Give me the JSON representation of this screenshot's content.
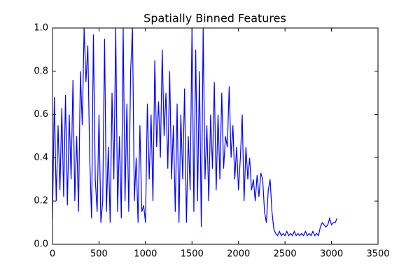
{
  "chart_data": {
    "type": "line",
    "title": "Spatially Binned Features",
    "x": [
      0,
      20,
      40,
      60,
      80,
      100,
      120,
      140,
      160,
      180,
      200,
      220,
      240,
      260,
      280,
      300,
      320,
      340,
      360,
      380,
      400,
      420,
      440,
      460,
      480,
      500,
      520,
      540,
      560,
      580,
      600,
      620,
      640,
      660,
      680,
      700,
      720,
      740,
      760,
      780,
      800,
      820,
      840,
      860,
      880,
      900,
      920,
      940,
      960,
      980,
      1000,
      1020,
      1040,
      1060,
      1080,
      1100,
      1120,
      1140,
      1160,
      1180,
      1200,
      1220,
      1240,
      1260,
      1280,
      1300,
      1320,
      1340,
      1360,
      1380,
      1400,
      1420,
      1440,
      1460,
      1480,
      1500,
      1520,
      1540,
      1560,
      1580,
      1600,
      1620,
      1640,
      1660,
      1680,
      1700,
      1720,
      1740,
      1760,
      1780,
      1800,
      1820,
      1840,
      1860,
      1880,
      1900,
      1920,
      1940,
      1960,
      1980,
      2000,
      2020,
      2040,
      2060,
      2080,
      2100,
      2120,
      2140,
      2160,
      2180,
      2200,
      2220,
      2240,
      2260,
      2280,
      2300,
      2320,
      2340,
      2360,
      2380,
      2400,
      2420,
      2440,
      2460,
      2480,
      2500,
      2520,
      2540,
      2560,
      2580,
      2600,
      2620,
      2640,
      2660,
      2680,
      2700,
      2720,
      2740,
      2760,
      2780,
      2800,
      2820,
      2840,
      2860,
      2880,
      2900,
      2920,
      2940,
      2960,
      2980,
      3000,
      3020,
      3040,
      3060
    ],
    "values": [
      0.12,
      0.68,
      0.2,
      0.55,
      0.25,
      0.63,
      0.22,
      0.69,
      0.18,
      0.6,
      0.3,
      0.76,
      0.2,
      0.5,
      0.15,
      0.8,
      0.55,
      1.0,
      0.75,
      0.92,
      0.4,
      0.12,
      0.97,
      0.3,
      0.15,
      0.6,
      0.1,
      0.2,
      0.95,
      0.15,
      0.45,
      0.1,
      0.7,
      0.3,
      1.0,
      0.15,
      0.5,
      0.12,
      1.0,
      0.2,
      0.65,
      0.15,
      0.8,
      1.0,
      0.2,
      0.4,
      0.1,
      0.55,
      0.15,
      0.18,
      0.1,
      0.65,
      0.3,
      0.6,
      0.2,
      0.85,
      0.45,
      0.66,
      0.4,
      0.9,
      0.5,
      0.7,
      0.35,
      0.8,
      0.3,
      0.55,
      0.15,
      0.65,
      0.1,
      0.6,
      0.3,
      0.72,
      0.1,
      0.5,
      0.25,
      1.0,
      0.15,
      0.9,
      0.2,
      0.8,
      0.08,
      1.0,
      0.3,
      0.55,
      0.2,
      0.6,
      0.35,
      0.75,
      0.25,
      0.6,
      0.3,
      0.7,
      0.35,
      0.5,
      0.45,
      0.73,
      0.4,
      0.55,
      0.3,
      0.45,
      0.25,
      0.4,
      0.6,
      0.2,
      0.45,
      0.3,
      0.4,
      0.25,
      0.3,
      0.2,
      0.32,
      0.22,
      0.33,
      0.3,
      0.15,
      0.1,
      0.25,
      0.3,
      0.15,
      0.07,
      0.05,
      0.04,
      0.06,
      0.04,
      0.05,
      0.04,
      0.06,
      0.04,
      0.05,
      0.04,
      0.06,
      0.04,
      0.05,
      0.04,
      0.05,
      0.04,
      0.06,
      0.04,
      0.05,
      0.04,
      0.06,
      0.04,
      0.05,
      0.04,
      0.08,
      0.1,
      0.09,
      0.08,
      0.09,
      0.12,
      0.09,
      0.1,
      0.1,
      0.12
    ],
    "color": "#0000ff",
    "xlim": [
      0,
      3500
    ],
    "xticks": [
      0,
      500,
      1000,
      1500,
      2000,
      2500,
      3000,
      3500
    ],
    "ylim": [
      0,
      1
    ],
    "yticks": [
      {
        "value": 0,
        "label": "0.0"
      },
      0.2,
      0.4,
      0.6,
      0.8,
      {
        "value": 1,
        "label": "1.0"
      }
    ]
  }
}
